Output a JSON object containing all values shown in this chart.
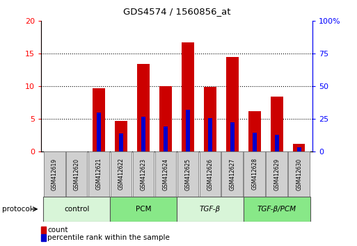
{
  "title": "GDS4574 / 1560856_at",
  "samples": [
    "GSM412619",
    "GSM412620",
    "GSM412621",
    "GSM412622",
    "GSM412623",
    "GSM412624",
    "GSM412625",
    "GSM412626",
    "GSM412627",
    "GSM412628",
    "GSM412629",
    "GSM412630"
  ],
  "count_values": [
    0,
    0,
    9.7,
    4.7,
    13.4,
    10.0,
    16.7,
    9.9,
    14.5,
    6.1,
    8.4,
    1.1
  ],
  "percentile_values": [
    0,
    0,
    29.5,
    13.5,
    26.5,
    19.0,
    32.0,
    25.5,
    22.0,
    14.5,
    12.5,
    3.0
  ],
  "groups": [
    {
      "label": "control",
      "start": 0,
      "end": 3,
      "color": "#d8f5d8"
    },
    {
      "label": "PCM",
      "start": 3,
      "end": 6,
      "color": "#88e888"
    },
    {
      "label": "TGF-β",
      "start": 6,
      "end": 9,
      "color": "#d8f5d8"
    },
    {
      "label": "TGF-β/PCM",
      "start": 9,
      "end": 12,
      "color": "#88e888"
    }
  ],
  "ylim_left": [
    0,
    20
  ],
  "ylim_right": [
    0,
    100
  ],
  "yticks_left": [
    0,
    5,
    10,
    15,
    20
  ],
  "yticks_right": [
    0,
    25,
    50,
    75,
    100
  ],
  "bar_color": "#cc0000",
  "percentile_color": "#0000cc",
  "bar_width": 0.55,
  "pct_bar_width": 0.2,
  "grid_color": "black",
  "legend_count_label": "count",
  "legend_pct_label": "percentile rank within the sample",
  "protocol_label": "protocol"
}
